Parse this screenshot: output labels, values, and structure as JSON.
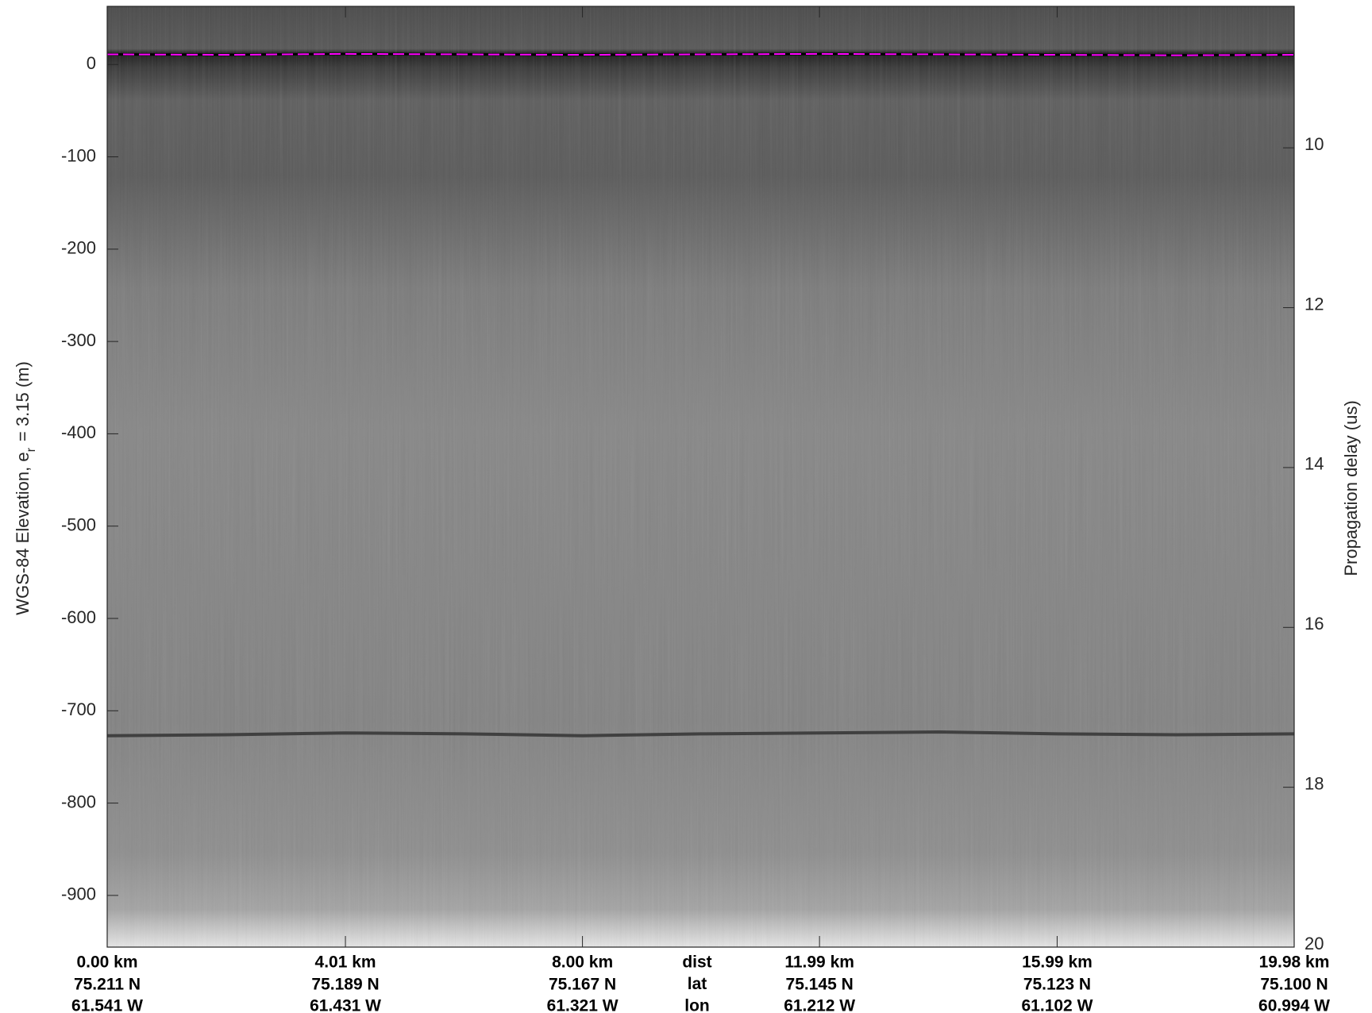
{
  "chart_data": {
    "type": "line",
    "ylabel": {
      "main": "WGS-84 Elevation, e",
      "sub": "r",
      "rest": "= 3.15 (m)"
    },
    "y2label": "Propagation delay (us)",
    "x": [
      0,
      2,
      4,
      6,
      8,
      10,
      12,
      14,
      16,
      18,
      19.98
    ],
    "series": [
      {
        "color": "#ff00ff",
        "values": [
          11,
          10.5,
          11.5,
          11,
          10.5,
          11,
          11.5,
          11,
          10.5,
          10,
          10.5
        ]
      },
      {
        "color": "#2e2e2e",
        "values": [
          -727,
          -726,
          -724,
          -725,
          -727,
          -725,
          -724,
          -723,
          -725,
          -726,
          -725
        ]
      }
    ],
    "xlim": [
      0,
      19.98
    ],
    "xticks": [
      {
        "value": 0,
        "label": "0.00 km"
      },
      {
        "value": 4.01,
        "label": "4.01 km"
      },
      {
        "value": 8,
        "label": "8.00 km"
      },
      {
        "value": 11.99,
        "label": "11.99 km"
      },
      {
        "value": 15.99,
        "label": "15.99 km"
      },
      {
        "value": 19.98,
        "label": "19.98 km"
      }
    ],
    "xtick_lat": [
      "75.211 N",
      "75.189 N",
      "75.167 N",
      "75.145 N",
      "75.123 N",
      "75.100 N"
    ],
    "xtick_lon": [
      "61.541 W",
      "61.431 W",
      "61.321 W",
      "61.212 W",
      "61.102 W",
      "60.994 W"
    ],
    "row_labels": [
      "dist",
      "lat",
      "lon"
    ],
    "ylim": [
      -956,
      63
    ],
    "yticks": [
      0,
      -100,
      -200,
      -300,
      -400,
      -500,
      -600,
      -700,
      -800,
      -900
    ],
    "y2lim": [
      20,
      8.23
    ],
    "y2ticks": [
      10,
      12,
      14,
      16,
      18,
      20
    ]
  }
}
